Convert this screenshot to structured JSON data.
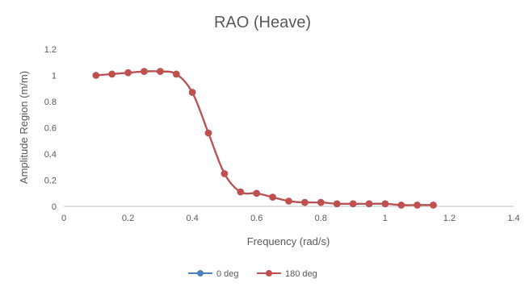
{
  "chart_data": {
    "type": "line",
    "title": "RAO (Heave)",
    "xlabel": "Frequency (rad/s)",
    "ylabel": "Amplitude Region (m/m)",
    "xlim": [
      0,
      1.4
    ],
    "ylim": [
      0,
      1.2
    ],
    "xticks": [
      "0",
      "0.2",
      "0.4",
      "0.6",
      "0.8",
      "1",
      "1.2",
      "1.4"
    ],
    "yticks": [
      "0",
      "0.2",
      "0.4",
      "0.6",
      "0.8",
      "1",
      "1.2"
    ],
    "grid": false,
    "legend_position": "bottom",
    "series": [
      {
        "name": "0 deg",
        "color": "#4f81bd",
        "x": [
          0.1,
          0.15,
          0.2,
          0.25,
          0.3,
          0.35,
          0.4,
          0.45,
          0.5,
          0.55,
          0.6,
          0.65,
          0.7,
          0.75,
          0.8,
          0.85,
          0.9,
          0.95,
          1.0,
          1.05,
          1.1,
          1.15
        ],
        "y": [
          1.0,
          1.01,
          1.02,
          1.03,
          1.03,
          1.01,
          0.87,
          0.56,
          0.25,
          0.11,
          0.1,
          0.07,
          0.04,
          0.03,
          0.03,
          0.02,
          0.02,
          0.02,
          0.02,
          0.01,
          0.01,
          0.01
        ]
      },
      {
        "name": "180 deg",
        "color": "#c0504d",
        "x": [
          0.1,
          0.15,
          0.2,
          0.25,
          0.3,
          0.35,
          0.4,
          0.45,
          0.5,
          0.55,
          0.6,
          0.65,
          0.7,
          0.75,
          0.8,
          0.85,
          0.9,
          0.95,
          1.0,
          1.05,
          1.1,
          1.15
        ],
        "y": [
          1.0,
          1.01,
          1.02,
          1.03,
          1.03,
          1.01,
          0.87,
          0.56,
          0.25,
          0.11,
          0.1,
          0.07,
          0.04,
          0.03,
          0.03,
          0.02,
          0.02,
          0.02,
          0.02,
          0.01,
          0.01,
          0.01
        ]
      }
    ]
  }
}
